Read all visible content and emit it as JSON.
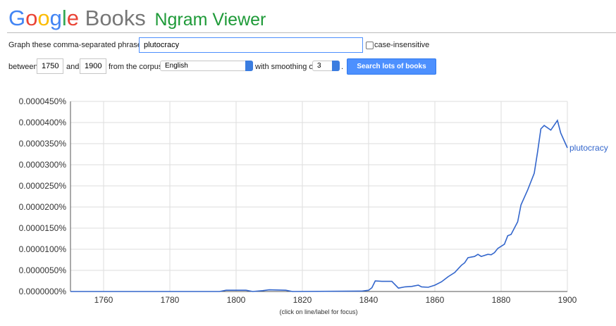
{
  "header": {
    "brand": "Google",
    "product": "Books",
    "title": "Ngram Viewer"
  },
  "form": {
    "phrases_label": "Graph these comma-separated phrases:",
    "phrases": "plutocracy",
    "case_label": "case-insensitive",
    "between": "between",
    "start": "1750",
    "and": "and",
    "end": "1900",
    "corpus_label": "from the corpus",
    "corpus": "English",
    "smoothing_label": "with smoothing of",
    "smoothing": "3",
    "period": ".",
    "button": "Search lots of books"
  },
  "chart_data": {
    "type": "line",
    "footnote": "(click on line/label for focus)",
    "xlim": [
      1750,
      1900
    ],
    "xticks": [
      1760,
      1780,
      1800,
      1820,
      1840,
      1860,
      1880,
      1900
    ],
    "ylim": [
      0,
      4.5e-05
    ],
    "yticks": [
      {
        "value": 0,
        "label": "0.0000000%"
      },
      {
        "value": 5e-06,
        "label": "0.0000050%"
      },
      {
        "value": 1e-05,
        "label": "0.0000100%"
      },
      {
        "value": 1.5e-05,
        "label": "0.0000150%"
      },
      {
        "value": 2e-05,
        "label": "0.0000200%"
      },
      {
        "value": 2.5e-05,
        "label": "0.0000250%"
      },
      {
        "value": 3e-05,
        "label": "0.0000300%"
      },
      {
        "value": 3.5e-05,
        "label": "0.0000350%"
      },
      {
        "value": 4e-05,
        "label": "0.0000400%"
      },
      {
        "value": 4.5e-05,
        "label": "0.0000450%"
      }
    ],
    "grid": true,
    "x": [
      1750,
      1795,
      1797,
      1803,
      1805,
      1808,
      1810,
      1815,
      1817,
      1838,
      1840,
      1841,
      1842,
      1844,
      1847,
      1849,
      1851,
      1853,
      1855,
      1856,
      1858,
      1860,
      1862,
      1864,
      1866,
      1868,
      1869,
      1870,
      1872,
      1873,
      1874,
      1876,
      1877,
      1878,
      1879,
      1881,
      1882,
      1883,
      1885,
      1886,
      1888,
      1890,
      1891,
      1892,
      1893,
      1895,
      1897,
      1898,
      1900
    ],
    "series": [
      {
        "name": "plutocracy",
        "color": "#3366cc",
        "values": [
          0,
          0,
          3e-07,
          3e-07,
          0,
          2e-07,
          4e-07,
          3e-07,
          0,
          1e-07,
          3e-07,
          9e-07,
          2.5e-06,
          2.4e-06,
          2.4e-06,
          8e-07,
          1.1e-06,
          1.2e-06,
          1.5e-06,
          1.1e-06,
          1e-06,
          1.5e-06,
          2.3e-06,
          3.5e-06,
          4.5e-06,
          6.2e-06,
          6.8e-06,
          8e-06,
          8.3e-06,
          8.8e-06,
          8.3e-06,
          8.8e-06,
          8.7e-06,
          9.2e-06,
          1.02e-05,
          1.12e-05,
          1.32e-05,
          1.35e-05,
          1.65e-05,
          2.05e-05,
          2.4e-05,
          2.8e-05,
          3.3e-05,
          3.85e-05,
          3.93e-05,
          3.82e-05,
          4.05e-05,
          3.75e-05,
          3.4e-05
        ]
      }
    ]
  }
}
